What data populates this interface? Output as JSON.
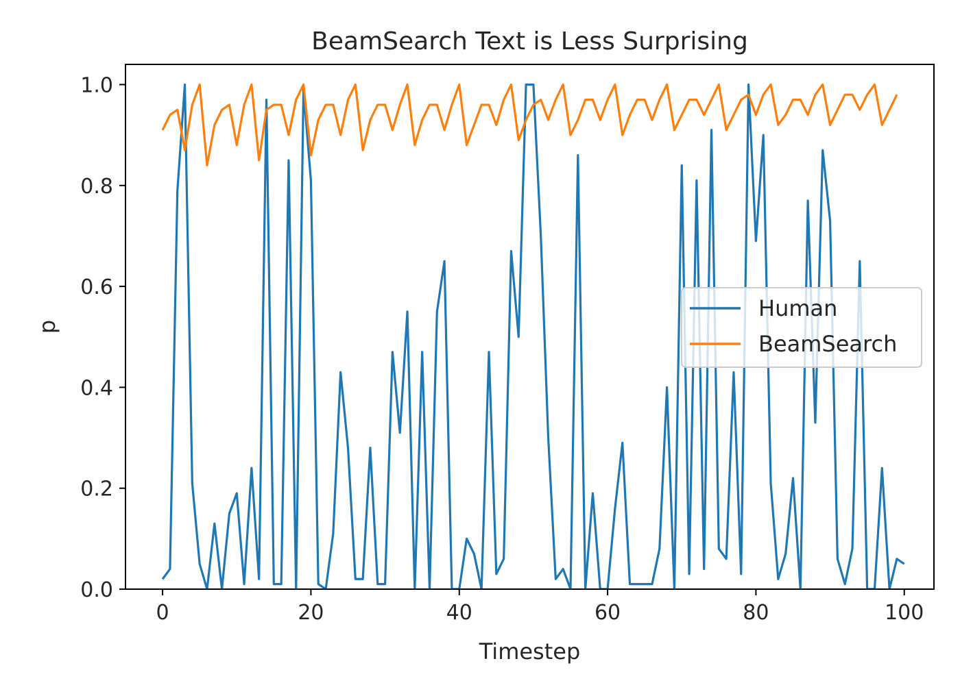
{
  "chart_data": {
    "type": "line",
    "title": "BeamSearch Text is Less Surprising",
    "xlabel": "Timestep",
    "ylabel": "p",
    "xlim": [
      -5,
      104
    ],
    "ylim": [
      0.0,
      1.04
    ],
    "xticks": [
      0,
      20,
      40,
      60,
      80,
      100
    ],
    "yticks": [
      0.0,
      0.2,
      0.4,
      0.6,
      0.8,
      1.0
    ],
    "xtick_labels": [
      "0",
      "20",
      "40",
      "60",
      "80",
      "100"
    ],
    "ytick_labels": [
      "0.0",
      "0.2",
      "0.4",
      "0.6",
      "0.8",
      "1.0"
    ],
    "grid": false,
    "legend_position": "center-right",
    "series": [
      {
        "name": "Human",
        "color": "#1f77b4",
        "values": [
          0.02,
          0.04,
          0.79,
          1.0,
          0.21,
          0.05,
          0.0,
          0.13,
          0.0,
          0.15,
          0.19,
          0.01,
          0.24,
          0.02,
          0.97,
          0.01,
          0.01,
          0.85,
          0.0,
          0.99,
          0.81,
          0.01,
          0.0,
          0.11,
          0.43,
          0.28,
          0.02,
          0.02,
          0.28,
          0.01,
          0.01,
          0.47,
          0.31,
          0.55,
          0.0,
          0.47,
          0.0,
          0.55,
          0.65,
          0.0,
          0.0,
          0.1,
          0.07,
          0.0,
          0.47,
          0.03,
          0.06,
          0.67,
          0.5,
          1.0,
          1.0,
          0.7,
          0.3,
          0.02,
          0.04,
          0.0,
          0.86,
          0.0,
          0.19,
          0.0,
          0.0,
          0.16,
          0.29,
          0.01,
          0.01,
          0.01,
          0.01,
          0.08,
          0.4,
          0.0,
          0.84,
          0.03,
          0.81,
          0.04,
          0.91,
          0.08,
          0.06,
          0.43,
          0.03,
          1.0,
          0.69,
          0.9,
          0.21,
          0.02,
          0.07,
          0.22,
          0.0,
          0.77,
          0.33,
          0.87,
          0.73,
          0.06,
          0.01,
          0.08,
          0.65,
          0.0,
          0.0,
          0.24,
          0.0,
          0.06,
          0.05
        ]
      },
      {
        "name": "BeamSearch",
        "color": "#ff7f0e",
        "values": [
          0.91,
          0.94,
          0.95,
          0.87,
          0.96,
          1.0,
          0.84,
          0.92,
          0.95,
          0.96,
          0.88,
          0.96,
          1.0,
          0.85,
          0.95,
          0.96,
          0.96,
          0.9,
          0.97,
          1.0,
          0.86,
          0.93,
          0.96,
          0.96,
          0.9,
          0.97,
          1.0,
          0.87,
          0.93,
          0.96,
          0.96,
          0.91,
          0.96,
          1.0,
          0.88,
          0.93,
          0.96,
          0.96,
          0.91,
          0.96,
          1.0,
          0.88,
          0.92,
          0.96,
          0.96,
          0.92,
          0.97,
          1.0,
          0.89,
          0.93,
          0.96,
          0.97,
          0.93,
          0.97,
          1.0,
          0.9,
          0.93,
          0.97,
          0.97,
          0.93,
          0.97,
          1.0,
          0.9,
          0.94,
          0.97,
          0.97,
          0.93,
          0.97,
          1.0,
          0.91,
          0.94,
          0.97,
          0.97,
          0.94,
          0.97,
          1.0,
          0.91,
          0.94,
          0.97,
          0.98,
          0.94,
          0.98,
          1.0,
          0.92,
          0.94,
          0.97,
          0.97,
          0.94,
          0.98,
          1.0,
          0.92,
          0.95,
          0.98,
          0.98,
          0.95,
          0.98,
          1.0,
          0.92,
          0.95,
          0.98
        ]
      }
    ]
  }
}
